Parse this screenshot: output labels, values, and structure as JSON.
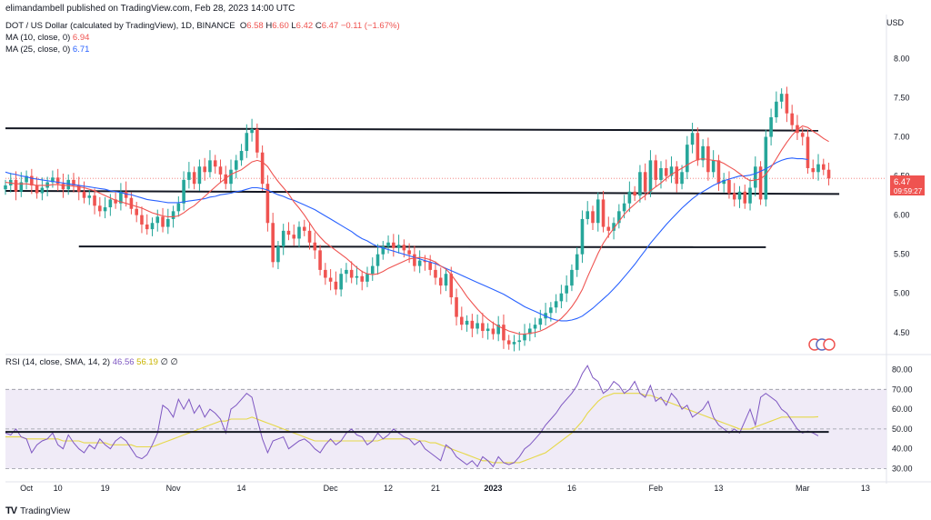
{
  "header": {
    "credit": "elimandambell published on TradingView.com, Feb 28, 2023 14:00 UTC"
  },
  "legend": {
    "symbol": "DOT / US Dollar (calculated by TradingView), 1D, BINANCE",
    "o_label": "O",
    "o": "6.58",
    "h_label": "H",
    "h": "6.60",
    "l_label": "L",
    "l": "6.42",
    "c_label": "C",
    "c": "6.47",
    "change": "−0.11 (−1.67%)",
    "ma10_label": "MA (10, close, 0)",
    "ma10_value": "6.94",
    "ma25_label": "MA (25, close, 0)",
    "ma25_value": "6.71"
  },
  "rsi_legend": {
    "label": "RSI (14, close, SMA, 14, 2)",
    "rsi_value": "46.56",
    "sma_value": "56.19",
    "extra1": "∅",
    "extra2": "∅"
  },
  "price_scale": {
    "currency": "USD",
    "last_price": "6.47",
    "countdown": "09:59:27"
  },
  "brand": {
    "logo": "TV",
    "name": "TradingView"
  },
  "colors": {
    "up": "#26a69a",
    "down": "#ef5350",
    "ma10": "#ef5350",
    "ma25": "#2962ff",
    "rsi": "#7e57c2",
    "rsi_sma": "#e6d84a",
    "band": "#ede7f6"
  },
  "chart_data": [
    {
      "type": "candlestick",
      "title": "DOT / US Dollar, 1D",
      "ylabel": "USD",
      "ylim": [
        4.3,
        8.4
      ],
      "yticks": [
        4.5,
        5.0,
        5.5,
        6.0,
        6.5,
        7.0,
        7.5,
        8.0
      ],
      "ytick_labels": [
        "4.50",
        "5.00",
        "5.50",
        "6.00",
        "6.50",
        "7.00",
        "7.50",
        "8.00"
      ],
      "xticks": [
        {
          "label": "Oct",
          "day": 4
        },
        {
          "label": "10",
          "day": 10
        },
        {
          "label": "19",
          "day": 19
        },
        {
          "label": "Nov",
          "day": 32
        },
        {
          "label": "14",
          "day": 45
        },
        {
          "label": "Dec",
          "day": 62
        },
        {
          "label": "12",
          "day": 73
        },
        {
          "label": "21",
          "day": 82
        },
        {
          "label": "2023",
          "day": 93
        },
        {
          "label": "16",
          "day": 108
        },
        {
          "label": "Feb",
          "day": 124
        },
        {
          "label": "13",
          "day": 136
        },
        {
          "label": "Mar",
          "day": 152
        },
        {
          "label": "13",
          "day": 164
        }
      ],
      "xlim_days": [
        0,
        168
      ],
      "closes": [
        6.38,
        6.45,
        6.3,
        6.42,
        6.5,
        6.38,
        6.28,
        6.35,
        6.42,
        6.48,
        6.4,
        6.33,
        6.45,
        6.38,
        6.3,
        6.22,
        6.25,
        6.12,
        6.05,
        6.1,
        6.2,
        6.15,
        6.3,
        6.22,
        6.08,
        6.0,
        5.88,
        5.82,
        5.9,
        5.98,
        5.85,
        5.95,
        6.05,
        6.15,
        6.45,
        6.55,
        6.4,
        6.62,
        6.55,
        6.7,
        6.62,
        6.52,
        6.4,
        6.58,
        6.7,
        6.82,
        7.05,
        7.1,
        6.8,
        6.4,
        5.9,
        5.4,
        5.6,
        5.8,
        5.75,
        5.7,
        5.85,
        5.8,
        5.65,
        5.55,
        5.3,
        5.2,
        5.15,
        5.05,
        5.25,
        5.3,
        5.2,
        5.22,
        5.15,
        5.25,
        5.35,
        5.5,
        5.6,
        5.65,
        5.58,
        5.62,
        5.55,
        5.5,
        5.35,
        5.42,
        5.4,
        5.3,
        5.2,
        5.1,
        5.25,
        4.95,
        4.7,
        4.6,
        4.65,
        4.55,
        4.62,
        4.52,
        4.55,
        4.48,
        4.6,
        4.4,
        4.35,
        4.38,
        4.4,
        4.48,
        4.55,
        4.6,
        4.68,
        4.75,
        4.82,
        4.9,
        5.0,
        5.1,
        5.3,
        5.5,
        5.95,
        6.05,
        5.9,
        6.2,
        5.85,
        5.8,
        5.9,
        6.05,
        6.15,
        6.3,
        6.25,
        6.55,
        6.3,
        6.7,
        6.45,
        6.6,
        6.5,
        6.62,
        6.4,
        6.55,
        6.9,
        7.05,
        6.7,
        6.88,
        6.55,
        6.7,
        6.4,
        6.45,
        6.28,
        6.2,
        6.3,
        6.15,
        6.35,
        6.62,
        6.2,
        7.0,
        7.25,
        7.45,
        7.55,
        7.3,
        7.15,
        7.05,
        7.0,
        6.6,
        6.55,
        6.65,
        6.58,
        6.47
      ],
      "ma10": [
        6.42,
        6.41,
        6.4,
        6.4,
        6.4,
        6.39,
        6.38,
        6.38,
        6.38,
        6.39,
        6.39,
        6.38,
        6.38,
        6.37,
        6.36,
        6.35,
        6.33,
        6.31,
        6.28,
        6.25,
        6.22,
        6.19,
        6.17,
        6.15,
        6.13,
        6.11,
        6.09,
        6.06,
        6.03,
        6.01,
        5.99,
        5.98,
        5.98,
        5.99,
        6.03,
        6.08,
        6.12,
        6.18,
        6.24,
        6.3,
        6.36,
        6.42,
        6.47,
        6.52,
        6.55,
        6.58,
        6.63,
        6.68,
        6.7,
        6.68,
        6.62,
        6.52,
        6.43,
        6.35,
        6.27,
        6.17,
        6.09,
        6.0,
        5.9,
        5.8,
        5.72,
        5.65,
        5.6,
        5.55,
        5.5,
        5.45,
        5.39,
        5.33,
        5.28,
        5.25,
        5.24,
        5.25,
        5.28,
        5.32,
        5.35,
        5.38,
        5.41,
        5.44,
        5.45,
        5.46,
        5.45,
        5.43,
        5.4,
        5.35,
        5.31,
        5.24,
        5.15,
        5.06,
        4.96,
        4.88,
        4.8,
        4.73,
        4.67,
        4.62,
        4.58,
        4.55,
        4.52,
        4.5,
        4.48,
        4.48,
        4.49,
        4.5,
        4.52,
        4.55,
        4.59,
        4.63,
        4.68,
        4.75,
        4.83,
        4.93,
        5.05,
        5.21,
        5.36,
        5.51,
        5.64,
        5.74,
        5.83,
        5.92,
        6.01,
        6.08,
        6.14,
        6.2,
        6.25,
        6.31,
        6.36,
        6.41,
        6.47,
        6.52,
        6.56,
        6.6,
        6.64,
        6.68,
        6.71,
        6.72,
        6.71,
        6.7,
        6.69,
        6.66,
        6.62,
        6.58,
        6.53,
        6.48,
        6.44,
        6.45,
        6.46,
        6.52,
        6.61,
        6.72,
        6.83,
        6.93,
        7.02,
        7.09,
        7.14,
        7.12,
        7.07,
        7.03,
        6.98,
        6.94
      ],
      "ma25": [
        6.55,
        6.53,
        6.52,
        6.5,
        6.49,
        6.47,
        6.46,
        6.45,
        6.44,
        6.43,
        6.42,
        6.41,
        6.4,
        6.39,
        6.38,
        6.37,
        6.36,
        6.35,
        6.34,
        6.33,
        6.31,
        6.3,
        6.29,
        6.27,
        6.26,
        6.24,
        6.22,
        6.2,
        6.19,
        6.18,
        6.17,
        6.16,
        6.16,
        6.16,
        6.17,
        6.18,
        6.19,
        6.2,
        6.21,
        6.23,
        6.24,
        6.26,
        6.27,
        6.28,
        6.3,
        6.31,
        6.33,
        6.35,
        6.35,
        6.34,
        6.32,
        6.29,
        6.26,
        6.24,
        6.21,
        6.19,
        6.16,
        6.13,
        6.1,
        6.07,
        6.03,
        5.99,
        5.95,
        5.91,
        5.87,
        5.83,
        5.79,
        5.74,
        5.7,
        5.67,
        5.63,
        5.6,
        5.58,
        5.56,
        5.54,
        5.52,
        5.5,
        5.48,
        5.46,
        5.44,
        5.42,
        5.4,
        5.38,
        5.35,
        5.32,
        5.29,
        5.26,
        5.23,
        5.2,
        5.17,
        5.14,
        5.11,
        5.08,
        5.05,
        5.02,
        4.99,
        4.95,
        4.91,
        4.87,
        4.83,
        4.8,
        4.77,
        4.74,
        4.71,
        4.68,
        4.66,
        4.65,
        4.65,
        4.66,
        4.68,
        4.71,
        4.76,
        4.81,
        4.87,
        4.93,
        4.99,
        5.06,
        5.13,
        5.21,
        5.29,
        5.37,
        5.46,
        5.55,
        5.64,
        5.72,
        5.8,
        5.88,
        5.95,
        6.02,
        6.09,
        6.15,
        6.21,
        6.26,
        6.3,
        6.34,
        6.38,
        6.41,
        6.44,
        6.46,
        6.48,
        6.5,
        6.5,
        6.51,
        6.53,
        6.56,
        6.59,
        6.63,
        6.67,
        6.7,
        6.72,
        6.73,
        6.72,
        6.72,
        6.71
      ],
      "horizontal_lines": [
        {
          "name": "resistance-top",
          "x1_day": 0,
          "x2_day": 155,
          "y1": 7.11,
          "y2": 7.08
        },
        {
          "name": "support-mid",
          "x1_day": 0,
          "x2_day": 159,
          "y1": 6.31,
          "y2": 6.27
        },
        {
          "name": "support-low",
          "x1_day": 14,
          "x2_day": 145,
          "y1": 5.6,
          "y2": 5.59
        }
      ],
      "last_price_label": "6.47",
      "annotation": "countdown 09:59:27"
    },
    {
      "type": "line",
      "title": "RSI (14, close, SMA, 14, 2)",
      "ylim": [
        27,
        83
      ],
      "yticks": [
        30.0,
        40.0,
        50.0,
        60.0,
        70.0,
        80.0
      ],
      "ytick_labels": [
        "30.00",
        "40.00",
        "50.00",
        "60.00",
        "70.00",
        "80.00"
      ],
      "band": [
        30,
        70
      ],
      "midline": 50,
      "series": [
        {
          "name": "RSI",
          "values": [
            48,
            47,
            50,
            46,
            45,
            38,
            42,
            44,
            45,
            48,
            42,
            40,
            47,
            43,
            40,
            38,
            42,
            40,
            45,
            42,
            40,
            44,
            46,
            44,
            40,
            36,
            35,
            37,
            42,
            48,
            62,
            60,
            56,
            65,
            60,
            65,
            58,
            62,
            56,
            60,
            58,
            55,
            48,
            60,
            62,
            65,
            68,
            66,
            55,
            45,
            38,
            44,
            45,
            46,
            40,
            42,
            44,
            45,
            43,
            40,
            38,
            42,
            45,
            42,
            44,
            48,
            50,
            47,
            46,
            42,
            44,
            48,
            45,
            47,
            50,
            48,
            46,
            45,
            42,
            44,
            40,
            38,
            36,
            34,
            42,
            40,
            36,
            34,
            32,
            34,
            31,
            36,
            34,
            31,
            36,
            33,
            32,
            33,
            36,
            40,
            42,
            45,
            48,
            52,
            55,
            58,
            62,
            65,
            68,
            72,
            78,
            82,
            76,
            74,
            68,
            70,
            74,
            72,
            68,
            70,
            74,
            68,
            66,
            72,
            64,
            66,
            62,
            68,
            65,
            60,
            62,
            56,
            58,
            60,
            64,
            56,
            52,
            50,
            48,
            50,
            48,
            54,
            60,
            52,
            66,
            68,
            66,
            64,
            60,
            58,
            54,
            50,
            48,
            49,
            48,
            46.56
          ]
        },
        {
          "name": "RSI-based MA",
          "values": [
            46,
            46,
            46,
            46,
            45,
            45,
            45,
            45,
            45,
            45,
            45,
            44,
            44,
            44,
            44,
            43,
            43,
            43,
            43,
            43,
            42,
            42,
            42,
            42,
            42,
            41,
            41,
            41,
            41,
            42,
            43,
            44,
            45,
            46,
            47,
            48,
            49,
            50,
            51,
            52,
            53,
            54,
            54,
            55,
            55,
            55,
            55,
            56,
            55,
            54,
            53,
            52,
            51,
            50,
            49,
            48,
            47,
            46,
            45,
            44,
            44,
            44,
            44,
            44,
            44,
            44,
            44,
            44,
            44,
            44,
            44,
            44,
            45,
            45,
            45,
            45,
            45,
            45,
            45,
            44,
            44,
            43,
            43,
            42,
            41,
            40,
            39,
            38,
            37,
            36,
            35,
            34,
            34,
            33,
            33,
            33,
            33,
            33,
            33,
            34,
            35,
            36,
            37,
            38,
            40,
            42,
            44,
            46,
            48,
            51,
            54,
            58,
            61,
            64,
            66,
            67,
            68,
            68,
            68,
            68,
            68,
            68,
            67,
            67,
            66,
            65,
            64,
            63,
            62,
            61,
            60,
            59,
            58,
            57,
            56,
            55,
            54,
            53,
            52,
            51,
            50,
            50,
            50,
            51,
            52,
            53,
            54,
            55,
            56,
            56,
            56,
            56,
            56,
            56,
            56,
            56.19
          ]
        }
      ],
      "horizontal_lines": [
        {
          "name": "rsi-support",
          "x1_day": 0,
          "x2_day": 157,
          "y1": 48.5,
          "y2": 48.5
        }
      ]
    }
  ]
}
